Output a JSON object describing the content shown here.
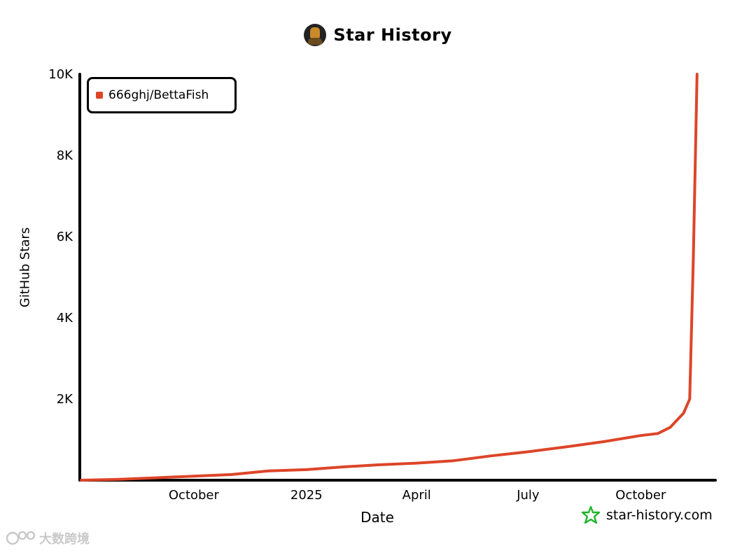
{
  "header": {
    "title": "Star History"
  },
  "watermark": {
    "site": "star-history.com",
    "corner_text": "大数跨境"
  },
  "colors": {
    "series": "#dd4528",
    "axis": "#000000",
    "logo": "#1fb52a"
  },
  "chart_data": {
    "type": "line",
    "title": "Star History",
    "xlabel": "Date",
    "ylabel": "GitHub Stars",
    "xlim": [
      "2024-07-01",
      "2025-12-01"
    ],
    "ylim": [
      0,
      10000
    ],
    "x_ticks": [
      {
        "date": "2024-10-01",
        "label": "October"
      },
      {
        "date": "2025-01-01",
        "label": "2025"
      },
      {
        "date": "2025-04-01",
        "label": "April"
      },
      {
        "date": "2025-07-01",
        "label": "July"
      },
      {
        "date": "2025-10-01",
        "label": "October"
      }
    ],
    "y_ticks": [
      {
        "value": 2000,
        "label": "2K"
      },
      {
        "value": 4000,
        "label": "4K"
      },
      {
        "value": 6000,
        "label": "6K"
      },
      {
        "value": 8000,
        "label": "8K"
      },
      {
        "value": 10000,
        "label": "10K"
      }
    ],
    "legend": {
      "position": "top-left"
    },
    "grid": false,
    "series": [
      {
        "name": "666ghj/BettaFish",
        "points": [
          [
            "2024-07-01",
            0
          ],
          [
            "2024-08-01",
            20
          ],
          [
            "2024-09-01",
            60
          ],
          [
            "2024-10-01",
            100
          ],
          [
            "2024-11-01",
            140
          ],
          [
            "2024-12-01",
            230
          ],
          [
            "2025-01-01",
            260
          ],
          [
            "2025-02-01",
            330
          ],
          [
            "2025-03-01",
            380
          ],
          [
            "2025-04-01",
            420
          ],
          [
            "2025-05-01",
            480
          ],
          [
            "2025-06-01",
            600
          ],
          [
            "2025-07-01",
            700
          ],
          [
            "2025-08-01",
            820
          ],
          [
            "2025-09-01",
            950
          ],
          [
            "2025-10-01",
            1100
          ],
          [
            "2025-10-15",
            1150
          ],
          [
            "2025-10-25",
            1300
          ],
          [
            "2025-11-05",
            1650
          ],
          [
            "2025-11-10",
            2000
          ],
          [
            "2025-11-13",
            5500
          ],
          [
            "2025-11-16",
            10000
          ]
        ]
      }
    ]
  }
}
